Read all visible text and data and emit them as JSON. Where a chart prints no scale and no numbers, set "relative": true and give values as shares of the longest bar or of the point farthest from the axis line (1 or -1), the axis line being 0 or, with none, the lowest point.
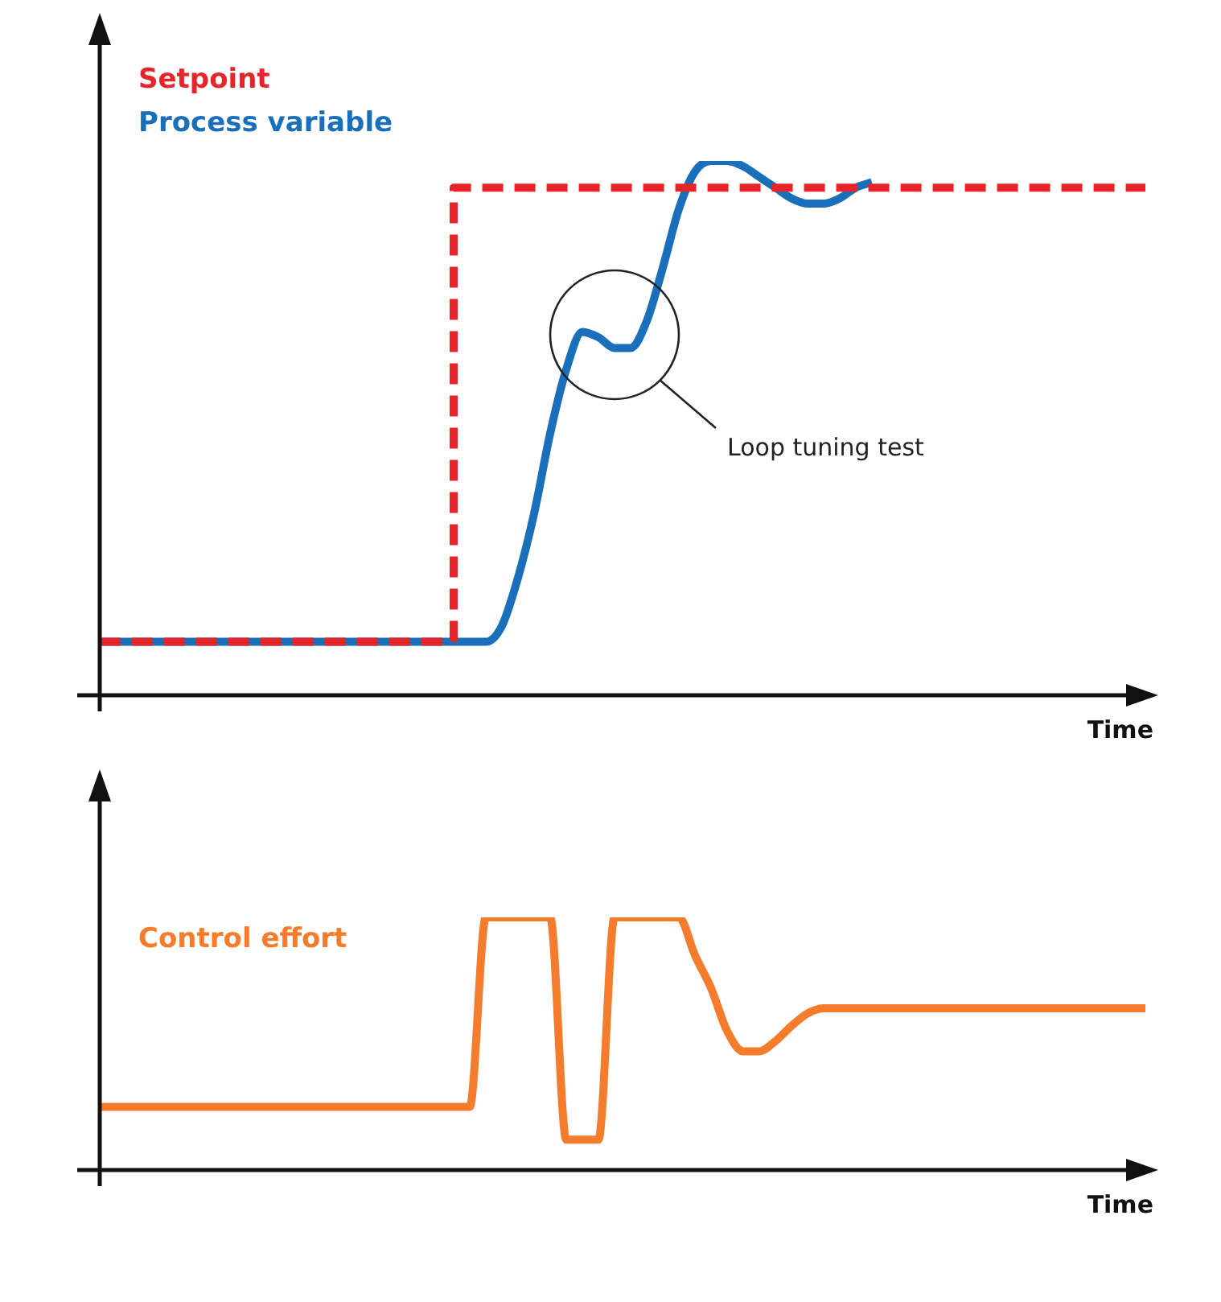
{
  "chart_data": [
    {
      "type": "line",
      "relative": true,
      "xlabel": "Time",
      "legend": "top left",
      "tick_labels": false,
      "marker": "none",
      "annotations": [
        "Loop tuning test"
      ],
      "categories": [
        null,
        null,
        null,
        null,
        null,
        null,
        null,
        null,
        null,
        null,
        null,
        null,
        null,
        null,
        null,
        null,
        null,
        null,
        null,
        null,
        null,
        null,
        null,
        null,
        null,
        null,
        null,
        null,
        null,
        null,
        null,
        null,
        null,
        null,
        null,
        null,
        null,
        null,
        null,
        null,
        null,
        null,
        null,
        null,
        null,
        null,
        null,
        null,
        null,
        null,
        null,
        null,
        null,
        null,
        null,
        null,
        null,
        null,
        null,
        null,
        null,
        null,
        null,
        null,
        null,
        null
      ],
      "series": [
        {
          "name": "Setpoint",
          "color": "#e8242b",
          "type": "step",
          "line_style": "dashed",
          "values": [
            0.1,
            0.1,
            0.1,
            0.1,
            0.1,
            0.1,
            0.1,
            0.1,
            0.1,
            0.1,
            0.1,
            0.1,
            0.1,
            0.1,
            0.1,
            0.1,
            0.1,
            0.1,
            0.1,
            0.1,
            0.1,
            0.1,
            0.1,
            0.95,
            0.95,
            0.95,
            0.95,
            0.95,
            0.95,
            0.95,
            0.95,
            0.95,
            0.95,
            0.95,
            0.95,
            0.95,
            0.95,
            0.95,
            0.95,
            0.95,
            0.95,
            0.95,
            0.95,
            0.95,
            0.95,
            0.95,
            0.95,
            0.95,
            0.95,
            0.95,
            0.95,
            0.95,
            0.95,
            0.95,
            0.95,
            0.95,
            0.95,
            0.95,
            0.95,
            0.95,
            0.95,
            0.95,
            0.95,
            0.95,
            0.95,
            0.95
          ]
        },
        {
          "name": "Process variable",
          "color": "#1a6fba",
          "type": "line",
          "line_style": "solid",
          "values": [
            0.1,
            0.1,
            0.1,
            0.1,
            0.1,
            0.1,
            0.1,
            0.1,
            0.1,
            0.1,
            0.1,
            0.1,
            0.1,
            0.1,
            0.1,
            0.1,
            0.1,
            0.1,
            0.1,
            0.1,
            0.1,
            0.1,
            0.1,
            0.1,
            0.1,
            0.13,
            0.22,
            0.34,
            0.49,
            0.61,
            0.68,
            0.67,
            0.65,
            0.65,
            0.7,
            0.8,
            0.91,
            0.98,
            1,
            1,
            0.99,
            0.97,
            0.95,
            0.93,
            0.92,
            0.92,
            0.93,
            0.95,
            0.96,
            null,
            null,
            null,
            null,
            null,
            null,
            null,
            null,
            null,
            null,
            null,
            null,
            null,
            null,
            null,
            null,
            null
          ]
        }
      ]
    },
    {
      "type": "line",
      "relative": true,
      "xlabel": "Time",
      "legend": "top left",
      "tick_labels": false,
      "marker": "none",
      "categories": [
        null,
        null,
        null,
        null,
        null,
        null,
        null,
        null,
        null,
        null,
        null,
        null,
        null,
        null,
        null,
        null,
        null,
        null,
        null,
        null,
        null,
        null,
        null,
        null,
        null,
        null,
        null,
        null,
        null,
        null,
        null,
        null,
        null,
        null,
        null,
        null,
        null,
        null,
        null,
        null,
        null,
        null,
        null,
        null,
        null,
        null,
        null,
        null,
        null,
        null,
        null,
        null,
        null,
        null,
        null,
        null,
        null,
        null,
        null,
        null,
        null,
        null,
        null,
        null,
        null,
        null
      ],
      "series": [
        {
          "name": "Control effort",
          "color": "#f47c2c",
          "type": "line",
          "line_style": "solid",
          "values": [
            0.25,
            0.25,
            0.25,
            0.25,
            0.25,
            0.25,
            0.25,
            0.25,
            0.25,
            0.25,
            0.25,
            0.25,
            0.25,
            0.25,
            0.25,
            0.25,
            0.25,
            0.25,
            0.25,
            0.25,
            0.25,
            0.25,
            0.25,
            0.25,
            1,
            1,
            1,
            1,
            1,
            0.12,
            0.12,
            0.12,
            1,
            1,
            1,
            1,
            1,
            0.85,
            0.72,
            0.55,
            0.47,
            0.47,
            0.51,
            0.57,
            0.62,
            0.64,
            0.64,
            0.64,
            0.64,
            0.64,
            0.64,
            0.64,
            0.64,
            0.64,
            0.64,
            0.64,
            0.64,
            0.64,
            0.64,
            0.64,
            0.64,
            0.64,
            0.64,
            0.64,
            0.64,
            0.64
          ]
        }
      ]
    }
  ]
}
